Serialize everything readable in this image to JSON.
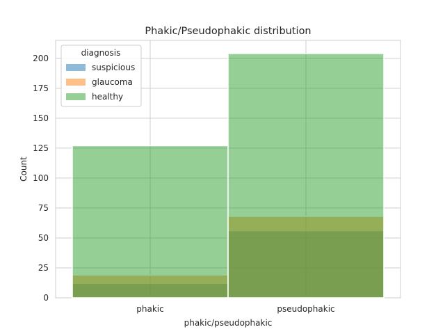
{
  "chart_data": {
    "type": "bar",
    "title": "Phakic/Pseudophakic distribution",
    "xlabel": "phakic/pseudophakic",
    "ylabel": "Count",
    "categories": [
      "phakic",
      "pseudophakic"
    ],
    "ylim": [
      0,
      215
    ],
    "yticks": [
      0,
      25,
      50,
      75,
      100,
      125,
      150,
      175,
      200
    ],
    "grid": true,
    "legend": {
      "title": "diagnosis",
      "placement": "top-left"
    },
    "series": [
      {
        "name": "suspicious",
        "values": [
          12,
          56
        ],
        "color": "#1f77b4"
      },
      {
        "name": "glaucoma",
        "values": [
          19,
          68
        ],
        "color": "#ff7f0e"
      },
      {
        "name": "healthy",
        "values": [
          127,
          204
        ],
        "color": "#2ca02c"
      }
    ],
    "overlay_alpha": 0.5
  }
}
